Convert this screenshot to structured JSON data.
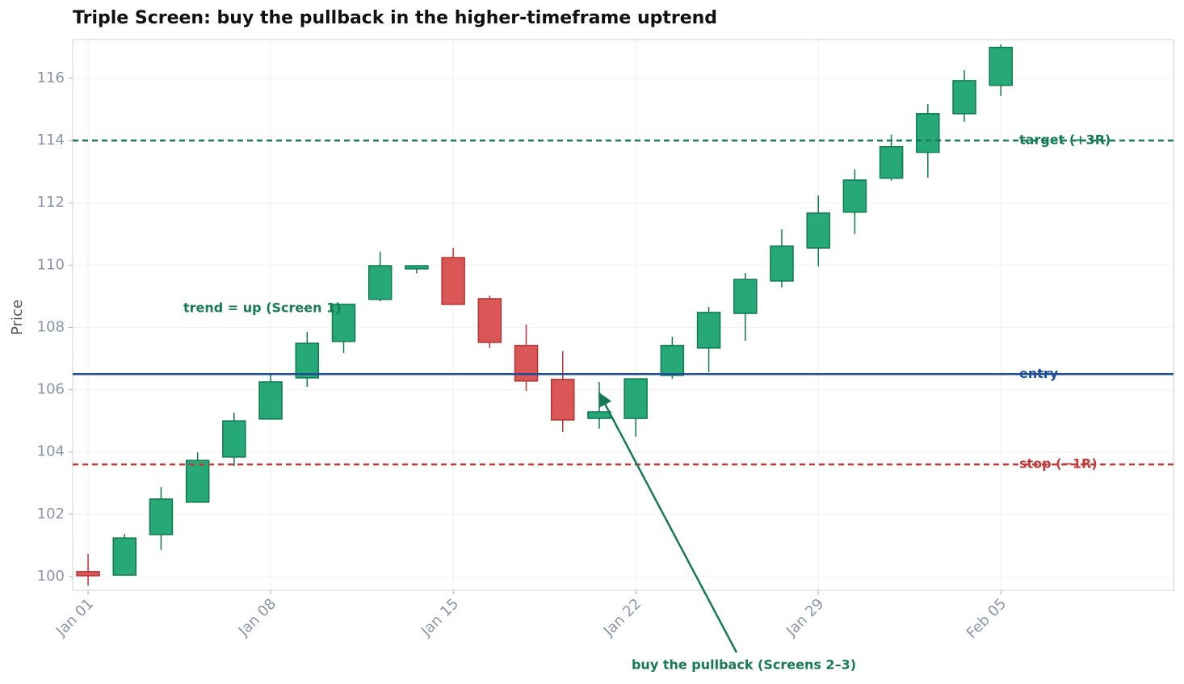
{
  "chart_data": {
    "type": "candlestick",
    "title": "Triple Screen: buy the pullback in the higher-timeframe uptrend",
    "y_label": "Price",
    "x": [
      0,
      1.4,
      2.8,
      4.2,
      5.6,
      7,
      8.4,
      9.8,
      11.2,
      12.6,
      14,
      15.4,
      16.8,
      18.2,
      19.6,
      21,
      22.4,
      23.8,
      25.2,
      26.6,
      28,
      29.4,
      30.8,
      32.2,
      33.6,
      35
    ],
    "open": [
      100.16,
      100.05,
      101.35,
      102.39,
      103.84,
      105.06,
      106.38,
      107.55,
      108.9,
      109.88,
      110.24,
      108.92,
      107.42,
      106.33,
      105.08,
      105.08,
      106.46,
      107.34,
      108.45,
      109.49,
      110.55,
      111.7,
      112.79,
      113.62,
      114.86,
      115.77
    ],
    "high": [
      100.73,
      101.37,
      102.88,
      103.99,
      105.26,
      106.54,
      107.86,
      108.74,
      110.43,
      109.98,
      110.55,
      109.02,
      108.09,
      107.24,
      106.25,
      106.35,
      107.7,
      108.66,
      109.75,
      111.15,
      112.24,
      113.07,
      114.19,
      115.17,
      116.26,
      117.09
    ],
    "low": [
      99.71,
      100.05,
      100.86,
      102.39,
      103.55,
      105.06,
      106.09,
      107.18,
      108.84,
      109.73,
      108.74,
      107.34,
      105.96,
      104.64,
      104.75,
      104.49,
      106.35,
      106.56,
      107.57,
      109.28,
      109.96,
      111.0,
      112.71,
      112.81,
      114.6,
      115.43
    ],
    "close": [
      100.03,
      101.24,
      102.49,
      103.73,
      105.0,
      106.25,
      107.49,
      108.74,
      109.98,
      109.98,
      108.74,
      107.52,
      106.28,
      105.03,
      105.29,
      106.35,
      107.42,
      108.48,
      109.54,
      110.61,
      111.67,
      112.73,
      113.8,
      114.86,
      115.92,
      116.99
    ],
    "up_color": "#27a877",
    "down_color": "#d95757",
    "xlim": [
      -0.59,
      41.62
    ],
    "ylim": [
      99.56,
      117.24
    ],
    "xticks": [
      {
        "value": 0,
        "label": "Jan 01"
      },
      {
        "value": 7,
        "label": "Jan 08"
      },
      {
        "value": 14,
        "label": "Jan 15"
      },
      {
        "value": 21,
        "label": "Jan 22"
      },
      {
        "value": 28,
        "label": "Jan 29"
      },
      {
        "value": 35,
        "label": "Feb 05"
      }
    ],
    "yticks": [
      100,
      102,
      104,
      106,
      108,
      110,
      112,
      114,
      116
    ],
    "grid": true,
    "hlines": [
      {
        "value": 114,
        "label": "target (+3R)",
        "color": "#177a55",
        "style": "dashed"
      },
      {
        "value": 106.5,
        "label": "entry",
        "color": "#1f4e99",
        "style": "solid"
      },
      {
        "value": 103.6,
        "label": "stop (−1R)",
        "color": "#c03a3a",
        "style": "dashed"
      }
    ],
    "annotations": [
      "trend = up  (Screen 1)",
      "buy the pullback (Screens 2–3)"
    ]
  }
}
